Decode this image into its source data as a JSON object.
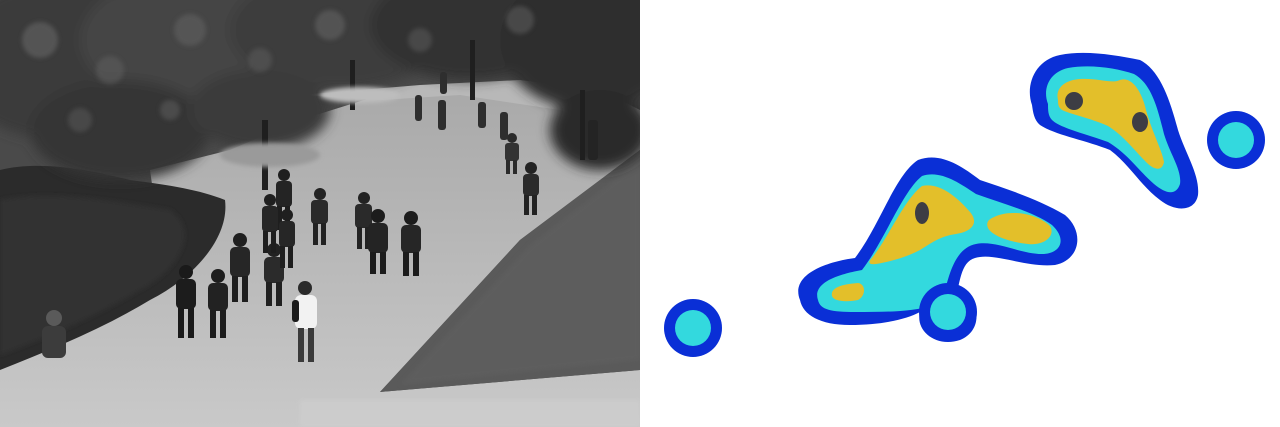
{
  "scene": {
    "tone": "grayscale",
    "people_count": 17
  },
  "density_map": {
    "background": "#ffffff",
    "colors": {
      "outer": "#0a2fd6",
      "mid": "#33d9de",
      "high": "#e3bf2a",
      "peak": "#3d3d44"
    },
    "blob_count": 5,
    "peak_count": 3
  }
}
